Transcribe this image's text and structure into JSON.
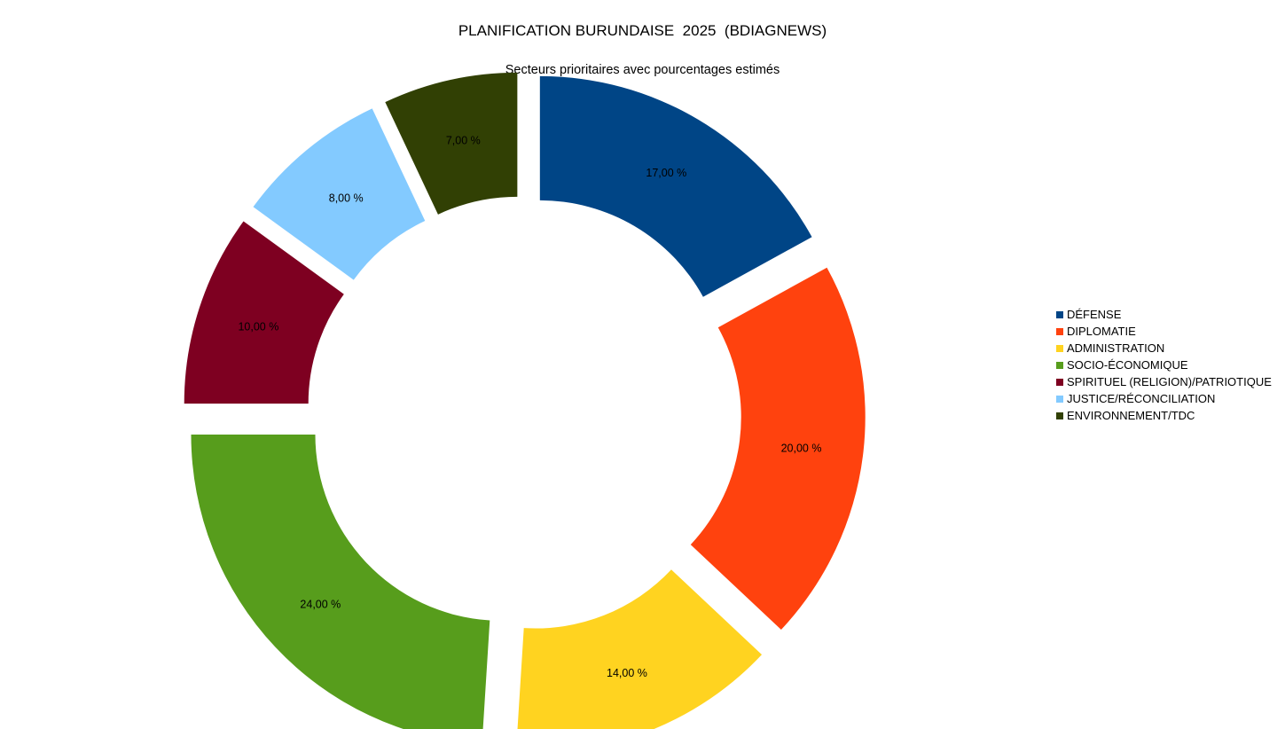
{
  "chart_data": {
    "type": "pie",
    "title": "PLANIFICATION BURUNDAISE  2025  (BDIAGNEWS)",
    "subtitle": "Secteurs prioritaires avec pourcentages estimés",
    "legend_position": "right",
    "slices": [
      {
        "name": "DÉFENSE",
        "value": 17.0,
        "label": "17,00 %",
        "color": "#004586"
      },
      {
        "name": "DIPLOMATIE",
        "value": 20.0,
        "label": "20,00 %",
        "color": "#ff420e"
      },
      {
        "name": "ADMINISTRATION",
        "value": 14.0,
        "label": "14,00 %",
        "color": "#ffd320"
      },
      {
        "name": "SOCIO-ÉCONOMIQUE",
        "value": 24.0,
        "label": "24,00 %",
        "color": "#579d1c"
      },
      {
        "name": "SPIRITUEL (RELIGION)/PATRIOTIQUE",
        "value": 10.0,
        "label": "10,00 %",
        "color": "#7e0021"
      },
      {
        "name": "JUSTICE/RÉCONCILIATION",
        "value": 8.0,
        "label": "8,00 %",
        "color": "#83caff"
      },
      {
        "name": "ENVIRONNEMENT/TDC",
        "value": 7.0,
        "label": "7,00 %",
        "color": "#314004"
      }
    ]
  }
}
